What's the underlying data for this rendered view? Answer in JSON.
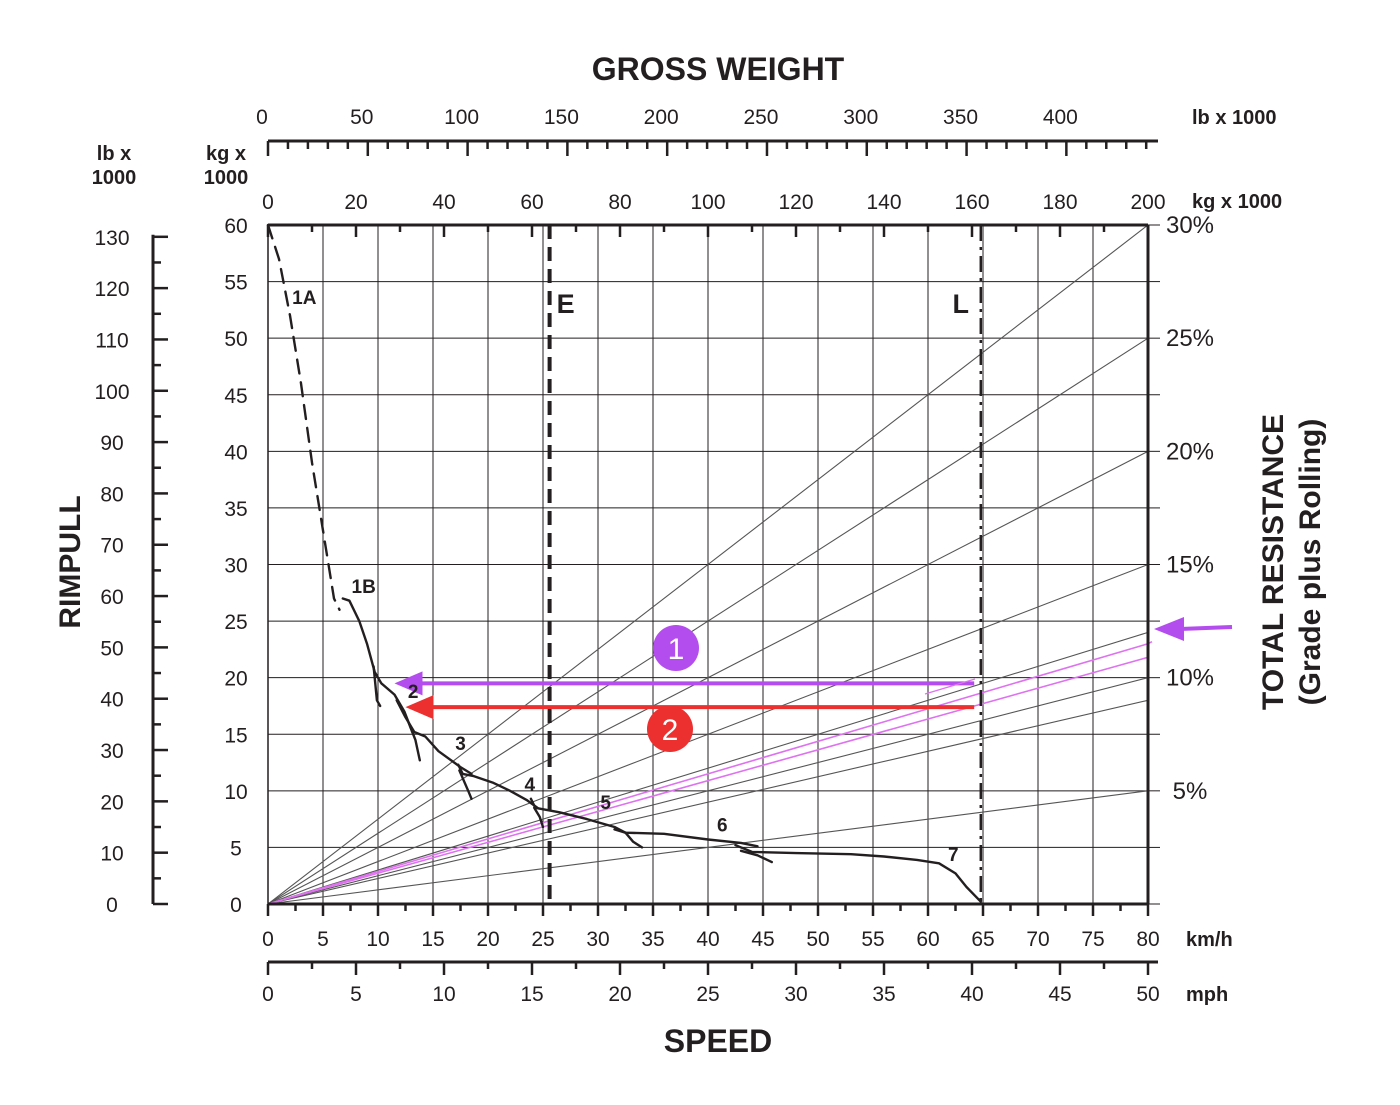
{
  "chart_data": {
    "type": "line",
    "title": "GROSS WEIGHT",
    "xlabel": "SPEED",
    "ylabel": "RIMPULL",
    "right_label_line1": "TOTAL RESISTANCE",
    "right_label_line2": "(Grade plus Rolling)",
    "units": {
      "top_outer": "lb x 1000",
      "top_inner": "kg x 1000",
      "left_outer_1": "lb x",
      "left_outer_2": "1000",
      "left_inner_1": "kg x",
      "left_inner_2": "1000",
      "bottom_inner": "km/h",
      "bottom_outer": "mph"
    },
    "axes": {
      "speed_kmh": {
        "range": [
          0,
          80
        ],
        "ticks": [
          "0",
          "5",
          "10",
          "15",
          "20",
          "25",
          "30",
          "35",
          "40",
          "45",
          "50",
          "55",
          "60",
          "65",
          "70",
          "75",
          "80"
        ]
      },
      "speed_mph": {
        "range": [
          0,
          50
        ],
        "ticks": [
          "0",
          "5",
          "10",
          "15",
          "20",
          "25",
          "30",
          "35",
          "40",
          "45",
          "50"
        ]
      },
      "rimpull_kg": {
        "range": [
          0,
          60
        ],
        "ticks": [
          "0",
          "5",
          "10",
          "15",
          "20",
          "25",
          "30",
          "35",
          "40",
          "45",
          "50",
          "55",
          "60"
        ]
      },
      "rimpull_lb": {
        "range": [
          0,
          132.3
        ],
        "ticks": [
          "0",
          "10",
          "20",
          "30",
          "40",
          "50",
          "60",
          "70",
          "80",
          "90",
          "100",
          "110",
          "120",
          "130"
        ]
      },
      "weight_kg": {
        "range": [
          0,
          200
        ],
        "ticks": [
          "0",
          "20",
          "40",
          "60",
          "80",
          "100",
          "120",
          "140",
          "160",
          "180",
          "200"
        ]
      },
      "weight_lb": {
        "range": [
          0,
          440.9
        ],
        "ticks": [
          "0",
          "50",
          "100",
          "150",
          "200",
          "250",
          "300",
          "350",
          "400"
        ]
      }
    },
    "resistance_lines": [
      {
        "label": "5%",
        "value": 5
      },
      {
        "label": "",
        "value": 9
      },
      {
        "label": "10%",
        "value": 10
      },
      {
        "label": "",
        "value": 12
      },
      {
        "label": "15%",
        "value": 15
      },
      {
        "label": "20%",
        "value": 20
      },
      {
        "label": "25%",
        "value": 25
      },
      {
        "label": "30%",
        "value": 30
      }
    ],
    "highlighted_lines": [
      {
        "value": 10.9,
        "color": "#df72f0"
      },
      {
        "value": 11.5,
        "color": "#df72f0"
      }
    ],
    "gear_curves": [
      {
        "name": "1A",
        "dashed": true,
        "points": [
          [
            0,
            60
          ],
          [
            1,
            57
          ],
          [
            2,
            52
          ],
          [
            3,
            46
          ],
          [
            4,
            39
          ],
          [
            5,
            33
          ],
          [
            6,
            27
          ],
          [
            6.5,
            26
          ]
        ]
      },
      {
        "name": "1B",
        "dashed": false,
        "points": [
          [
            6.8,
            27
          ],
          [
            7.4,
            26.8
          ],
          [
            8.3,
            25
          ],
          [
            9,
            23
          ],
          [
            9.7,
            20.5
          ],
          [
            10.3,
            19.5
          ],
          [
            11.5,
            18.5
          ],
          [
            12.4,
            17
          ],
          [
            13.2,
            15
          ]
        ]
      },
      {
        "name": "1B-tail",
        "dashed": false,
        "points": [
          [
            9.6,
            21
          ],
          [
            9.9,
            18
          ],
          [
            10.2,
            17.5
          ]
        ]
      },
      {
        "name": "2",
        "dashed": false,
        "points": [
          [
            11.7,
            18
          ],
          [
            12.5,
            16.5
          ],
          [
            13.3,
            15.2
          ],
          [
            14.3,
            14.8
          ],
          [
            15.5,
            13.5
          ],
          [
            17.5,
            12.1
          ],
          [
            18.5,
            11.5
          ]
        ]
      },
      {
        "name": "2-tail",
        "dashed": false,
        "points": [
          [
            12.8,
            16
          ],
          [
            13.4,
            14.5
          ],
          [
            13.8,
            12.7
          ]
        ]
      },
      {
        "name": "3",
        "dashed": false,
        "points": [
          [
            17.3,
            12.3
          ],
          [
            17.7,
            11.5
          ],
          [
            18.7,
            11.3
          ],
          [
            20.5,
            10.7
          ],
          [
            22,
            10
          ],
          [
            23.5,
            9.2
          ],
          [
            24.5,
            8.5
          ]
        ]
      },
      {
        "name": "3-tail",
        "dashed": false,
        "points": [
          [
            17.4,
            11.8
          ],
          [
            18.2,
            10
          ],
          [
            18.5,
            9.3
          ]
        ]
      },
      {
        "name": "4",
        "dashed": false,
        "points": [
          [
            23.9,
            9.3
          ],
          [
            24.3,
            8.5
          ],
          [
            26.5,
            8.1
          ],
          [
            29,
            7.5
          ],
          [
            31.5,
            6.8
          ],
          [
            32.5,
            6.3
          ]
        ]
      },
      {
        "name": "4-tail",
        "dashed": false,
        "points": [
          [
            24.2,
            8.5
          ],
          [
            24.7,
            7.7
          ],
          [
            25,
            6.8
          ]
        ]
      },
      {
        "name": "5",
        "dashed": false,
        "points": [
          [
            31.5,
            6.6
          ],
          [
            32.5,
            6.3
          ],
          [
            36,
            6.2
          ],
          [
            40,
            5.7
          ],
          [
            43,
            5.4
          ],
          [
            44.5,
            5.1
          ]
        ]
      },
      {
        "name": "5-tail",
        "dashed": false,
        "points": [
          [
            32.5,
            6.3
          ],
          [
            33.2,
            5.5
          ],
          [
            34,
            5
          ]
        ]
      },
      {
        "name": "6",
        "dashed": false,
        "points": [
          [
            42.5,
            5.2
          ],
          [
            44,
            4.6
          ],
          [
            48,
            4.5
          ],
          [
            53,
            4.4
          ],
          [
            56,
            4.2
          ],
          [
            59,
            3.9
          ],
          [
            61,
            3.6
          ],
          [
            62.5,
            2.7
          ],
          [
            63.5,
            1.5
          ],
          [
            64.8,
            0.2
          ]
        ]
      },
      {
        "name": "6-tail",
        "dashed": false,
        "points": [
          [
            43,
            4.7
          ],
          [
            44.5,
            4.3
          ],
          [
            45.8,
            3.7
          ]
        ]
      }
    ],
    "curve_labels": [
      {
        "text": "1A",
        "x": 3.3,
        "y": 53
      },
      {
        "text": "1B",
        "x": 8.7,
        "y": 27.5
      },
      {
        "text": "2",
        "x": 13.2,
        "y": 18.2
      },
      {
        "text": "3",
        "x": 17.5,
        "y": 13.6
      },
      {
        "text": "4",
        "x": 23.8,
        "y": 10
      },
      {
        "text": "5",
        "x": 30.7,
        "y": 8.4
      },
      {
        "text": "6",
        "x": 41.3,
        "y": 6.4
      },
      {
        "text": "7",
        "x": 62.3,
        "y": 3.8
      }
    ],
    "reference_lines": [
      {
        "label": "E",
        "x_kg": 64,
        "style": "dashed"
      },
      {
        "label": "L",
        "x_kg": 162,
        "style": "dashdot"
      }
    ],
    "annotations": [
      {
        "label": "1",
        "color": "#b44dee",
        "y": 19.5,
        "from_kg": 160.5,
        "to_speed_kmh": 11.5
      },
      {
        "label": "2",
        "color": "#ec2f2f",
        "y": 17.4,
        "from_kg": 160.5,
        "to_speed_kmh": 12.5
      }
    ],
    "entry_arrow_color": "#b44dee",
    "grid": true
  }
}
